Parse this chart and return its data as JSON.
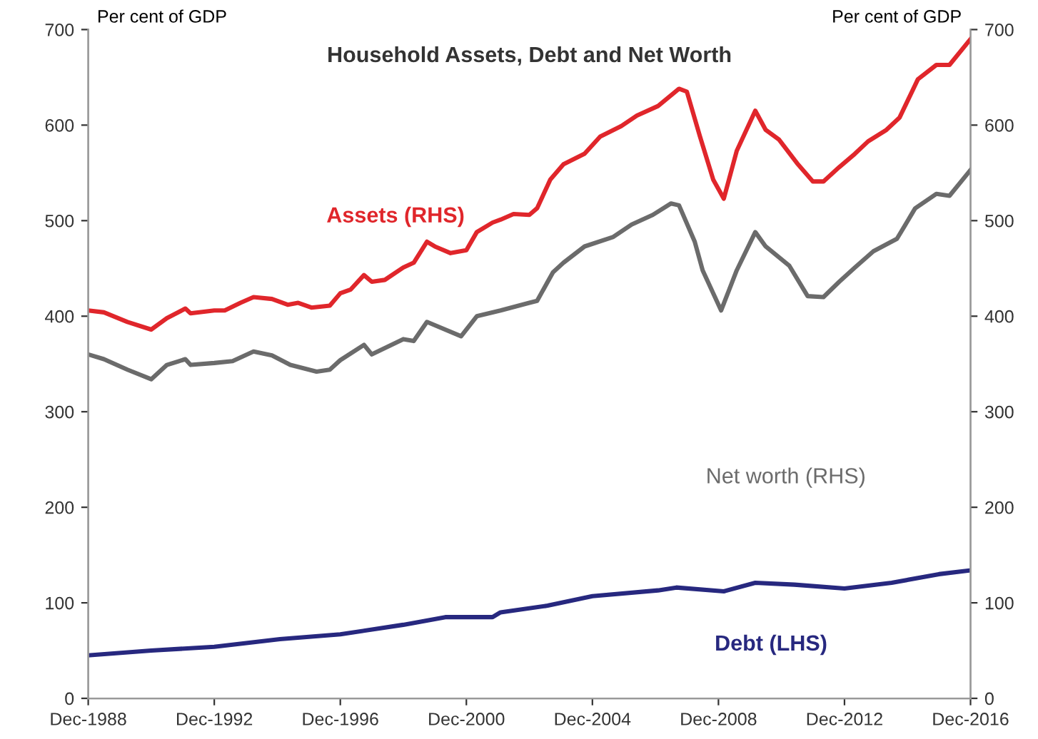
{
  "chart_data": {
    "type": "line",
    "title": "Household Assets, Debt and Net Worth",
    "ylabel": "Per cent of GDP",
    "y2label": "Per cent of GDP",
    "xlim": [
      "1988-12",
      "2016-12"
    ],
    "xticks": [
      {
        "value": "1988-12",
        "label": "Dec-1988"
      },
      {
        "value": "1992-12",
        "label": "Dec-1992"
      },
      {
        "value": "1996-12",
        "label": "Dec-1996"
      },
      {
        "value": "2000-12",
        "label": "Dec-2000"
      },
      {
        "value": "2004-12",
        "label": "Dec-2004"
      },
      {
        "value": "2008-12",
        "label": "Dec-2008"
      },
      {
        "value": "2012-12",
        "label": "Dec-2012"
      },
      {
        "value": "2016-12",
        "label": "Dec-2016"
      }
    ],
    "ylim": [
      0,
      700
    ],
    "yticks": [
      0,
      100,
      200,
      300,
      400,
      500,
      600,
      700
    ],
    "y2lim": [
      0,
      700
    ],
    "y2ticks": [
      0,
      100,
      200,
      300,
      400,
      500,
      600,
      700
    ],
    "grid": false,
    "legend": false,
    "marker": "none",
    "line_style": "solid",
    "series": [
      {
        "name": "Assets (RHS)",
        "color": "#e0262b",
        "axis": "y2",
        "x": [
          "1988-12",
          "1989-06",
          "1990-03",
          "1990-12",
          "1991-06",
          "1992-01",
          "1992-03",
          "1992-12",
          "1993-04",
          "1993-10",
          "1994-03",
          "1994-10",
          "1995-04",
          "1995-08",
          "1996-01",
          "1996-08",
          "1996-12",
          "1997-04",
          "1997-09",
          "1997-12",
          "1998-05",
          "1998-12",
          "1999-04",
          "1999-09",
          "1999-12",
          "2000-06",
          "2000-12",
          "2001-04",
          "2001-10",
          "2002-01",
          "2002-06",
          "2002-12",
          "2003-03",
          "2003-08",
          "2004-01",
          "2004-09",
          "2005-03",
          "2005-11",
          "2006-05",
          "2007-01",
          "2007-09",
          "2007-12",
          "2008-05",
          "2008-10",
          "2009-02",
          "2009-07",
          "2010-02",
          "2010-06",
          "2010-11",
          "2011-06",
          "2011-12",
          "2012-04",
          "2012-10",
          "2013-04",
          "2013-09",
          "2014-04",
          "2014-09",
          "2015-04",
          "2015-11",
          "2016-04",
          "2016-12"
        ],
        "values": [
          406,
          404,
          394,
          386,
          398,
          408,
          403,
          406,
          406,
          414,
          420,
          418,
          412,
          414,
          409,
          411,
          424,
          428,
          443,
          436,
          438,
          451,
          456,
          478,
          473,
          466,
          469,
          488,
          498,
          501,
          507,
          506,
          513,
          543,
          559,
          570,
          588,
          599,
          610,
          620,
          638,
          635,
          588,
          543,
          523,
          573,
          615,
          595,
          585,
          560,
          541,
          541,
          556,
          570,
          583,
          595,
          608,
          648,
          663,
          663,
          690
        ]
      },
      {
        "name": "Net worth (RHS)",
        "color": "#6b6b6b",
        "axis": "y2",
        "x": [
          "1988-12",
          "1989-06",
          "1990-03",
          "1990-12",
          "1991-06",
          "1992-01",
          "1992-03",
          "1992-12",
          "1993-07",
          "1994-03",
          "1994-10",
          "1995-05",
          "1996-03",
          "1996-08",
          "1996-12",
          "1997-09",
          "1997-12",
          "1998-12",
          "1999-04",
          "1999-09",
          "2000-10",
          "2001-04",
          "2002-01",
          "2002-12",
          "2003-03",
          "2003-09",
          "2004-01",
          "2004-09",
          "2005-08",
          "2006-03",
          "2006-11",
          "2007-06",
          "2007-09",
          "2008-03",
          "2008-06",
          "2009-01",
          "2009-07",
          "2010-02",
          "2010-06",
          "2011-03",
          "2011-10",
          "2012-04",
          "2012-10",
          "2013-04",
          "2013-11",
          "2014-08",
          "2015-03",
          "2015-11",
          "2016-04",
          "2016-12"
        ],
        "values": [
          360,
          355,
          344,
          334,
          349,
          355,
          349,
          351,
          353,
          363,
          359,
          349,
          342,
          344,
          354,
          370,
          360,
          376,
          374,
          394,
          379,
          400,
          406,
          414,
          416,
          446,
          456,
          473,
          483,
          496,
          506,
          518,
          516,
          478,
          448,
          406,
          448,
          488,
          473,
          453,
          421,
          420,
          436,
          451,
          468,
          481,
          513,
          528,
          526,
          553
        ]
      },
      {
        "name": "Debt (LHS)",
        "color": "#27287f",
        "x": [
          "1988-12",
          "1990-12",
          "1992-12",
          "1995-01",
          "1996-12",
          "1998-12",
          "2000-04",
          "2001-10",
          "2002-01",
          "2003-07",
          "2004-12",
          "2007-01",
          "2007-08",
          "2009-02",
          "2010-02",
          "2011-05",
          "2012-12",
          "2014-06",
          "2015-12",
          "2016-12"
        ],
        "values": [
          45,
          50,
          54,
          62,
          67,
          77,
          85,
          85,
          90,
          97,
          107,
          113,
          116,
          112,
          121,
          119,
          115,
          121,
          130,
          134
        ]
      }
    ]
  }
}
